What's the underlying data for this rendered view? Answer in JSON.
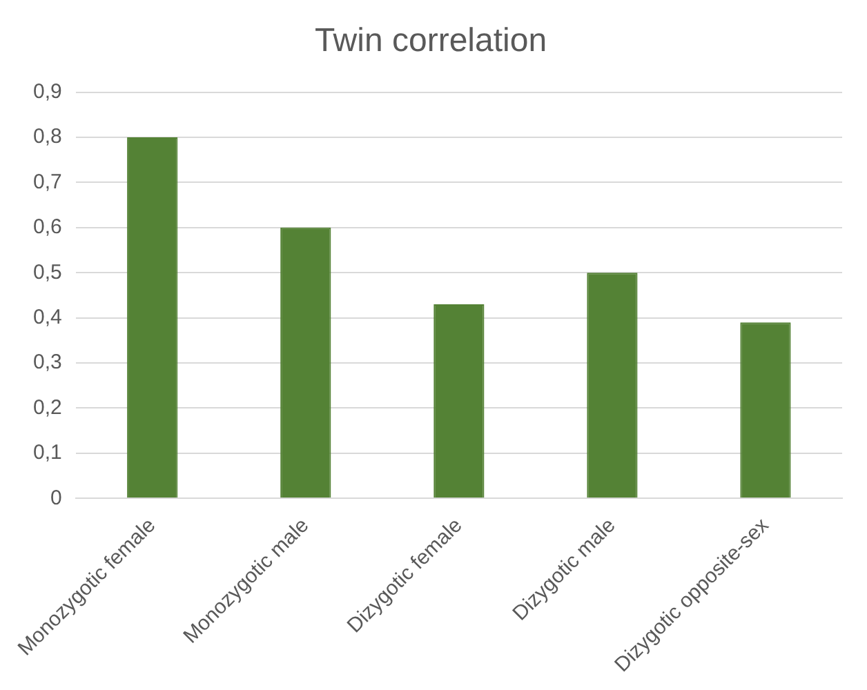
{
  "chart_data": {
    "type": "bar",
    "title": "Twin correlation",
    "categories": [
      "Monozygotic female",
      "Monozygotic male",
      "Dizygotic female",
      "Dizygotic male",
      "Dizygotic opposite-sex"
    ],
    "values": [
      0.8,
      0.6,
      0.43,
      0.5,
      0.39
    ],
    "color": "#548235",
    "ylim": [
      0,
      0.9
    ],
    "yticks": [
      0,
      {
        "value": 0.1,
        "label": "0,1"
      },
      {
        "value": 0.2,
        "label": "0,2"
      },
      {
        "value": 0.3,
        "label": "0,3"
      },
      {
        "value": 0.4,
        "label": "0,4"
      },
      {
        "value": 0.5,
        "label": "0,5"
      },
      {
        "value": 0.6,
        "label": "0,6"
      },
      {
        "value": 0.7,
        "label": "0,7"
      },
      {
        "value": 0.8,
        "label": "0,8"
      },
      {
        "value": 0.9,
        "label": "0,9"
      }
    ],
    "grid": "y"
  }
}
